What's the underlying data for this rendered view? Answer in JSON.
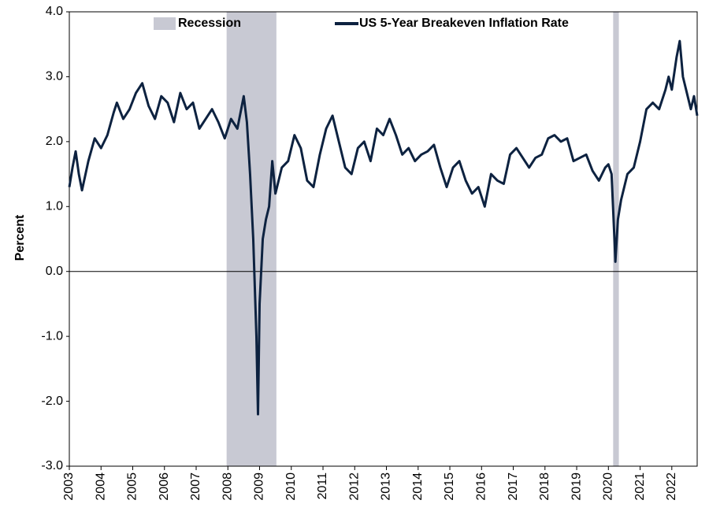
{
  "chart_data": {
    "type": "line",
    "ylabel": "Percent",
    "legend": "top",
    "recession_name": "Recession",
    "recession_color": "#c8c9d3",
    "recessions": [
      [
        2007.96,
        2009.53
      ],
      [
        2020.15,
        2020.33
      ]
    ],
    "x": [
      2003.0,
      2003.1,
      2003.2,
      2003.3,
      2003.4,
      2003.6,
      2003.8,
      2004.0,
      2004.2,
      2004.4,
      2004.5,
      2004.7,
      2004.9,
      2005.1,
      2005.3,
      2005.5,
      2005.7,
      2005.9,
      2006.1,
      2006.3,
      2006.5,
      2006.7,
      2006.9,
      2007.1,
      2007.3,
      2007.5,
      2007.7,
      2007.9,
      2008.1,
      2008.3,
      2008.5,
      2008.6,
      2008.7,
      2008.8,
      2008.9,
      2008.95,
      2009.0,
      2009.1,
      2009.2,
      2009.3,
      2009.4,
      2009.5,
      2009.7,
      2009.9,
      2010.1,
      2010.3,
      2010.5,
      2010.7,
      2010.9,
      2011.1,
      2011.3,
      2011.5,
      2011.7,
      2011.9,
      2012.1,
      2012.3,
      2012.5,
      2012.7,
      2012.9,
      2013.1,
      2013.3,
      2013.5,
      2013.7,
      2013.9,
      2014.1,
      2014.3,
      2014.5,
      2014.7,
      2014.9,
      2015.1,
      2015.3,
      2015.5,
      2015.7,
      2015.9,
      2016.1,
      2016.3,
      2016.5,
      2016.7,
      2016.9,
      2017.1,
      2017.3,
      2017.5,
      2017.7,
      2017.9,
      2018.1,
      2018.3,
      2018.5,
      2018.7,
      2018.9,
      2019.1,
      2019.3,
      2019.5,
      2019.7,
      2019.9,
      2020.0,
      2020.1,
      2020.2,
      2020.22,
      2020.3,
      2020.4,
      2020.6,
      2020.8,
      2021.0,
      2021.2,
      2021.4,
      2021.6,
      2021.8,
      2021.9,
      2022.0,
      2022.15,
      2022.25,
      2022.35,
      2022.5,
      2022.6,
      2022.7,
      2022.8
    ],
    "series": [
      {
        "name": "US 5-Year Breakeven Inflation Rate",
        "color": "#0d2240",
        "values": [
          1.3,
          1.6,
          1.85,
          1.5,
          1.25,
          1.7,
          2.05,
          1.9,
          2.1,
          2.45,
          2.6,
          2.35,
          2.5,
          2.75,
          2.9,
          2.55,
          2.35,
          2.7,
          2.6,
          2.3,
          2.75,
          2.5,
          2.6,
          2.2,
          2.35,
          2.5,
          2.3,
          2.05,
          2.35,
          2.2,
          2.7,
          2.3,
          1.5,
          0.5,
          -1.0,
          -2.2,
          -0.5,
          0.5,
          0.8,
          1.0,
          1.7,
          1.2,
          1.6,
          1.7,
          2.1,
          1.9,
          1.4,
          1.3,
          1.8,
          2.2,
          2.4,
          2.0,
          1.6,
          1.5,
          1.9,
          2.0,
          1.7,
          2.2,
          2.1,
          2.35,
          2.1,
          1.8,
          1.9,
          1.7,
          1.8,
          1.85,
          1.95,
          1.6,
          1.3,
          1.6,
          1.7,
          1.4,
          1.2,
          1.3,
          1.0,
          1.5,
          1.4,
          1.35,
          1.8,
          1.9,
          1.75,
          1.6,
          1.75,
          1.8,
          2.05,
          2.1,
          2.0,
          2.05,
          1.7,
          1.75,
          1.8,
          1.55,
          1.4,
          1.6,
          1.65,
          1.5,
          0.4,
          0.15,
          0.8,
          1.1,
          1.5,
          1.6,
          2.0,
          2.5,
          2.6,
          2.5,
          2.8,
          3.0,
          2.8,
          3.3,
          3.55,
          3.0,
          2.7,
          2.5,
          2.7,
          2.4
        ]
      }
    ],
    "xlim": [
      2003,
      2022.8
    ],
    "xticks": [
      2003,
      2004,
      2005,
      2006,
      2007,
      2008,
      2009,
      2010,
      2011,
      2012,
      2013,
      2014,
      2015,
      2016,
      2017,
      2018,
      2019,
      2020,
      2021,
      2022
    ],
    "ylim": [
      -3,
      4
    ],
    "yticks": [
      {
        "value": -3,
        "label": "-3.0"
      },
      {
        "value": -2,
        "label": "-2.0"
      },
      {
        "value": -1,
        "label": "-1.0"
      },
      {
        "value": 0,
        "label": "0.0"
      },
      {
        "value": 1,
        "label": "1.0"
      },
      {
        "value": 2,
        "label": "2.0"
      },
      {
        "value": 3,
        "label": "3.0"
      },
      {
        "value": 4,
        "label": "4.0"
      }
    ]
  }
}
